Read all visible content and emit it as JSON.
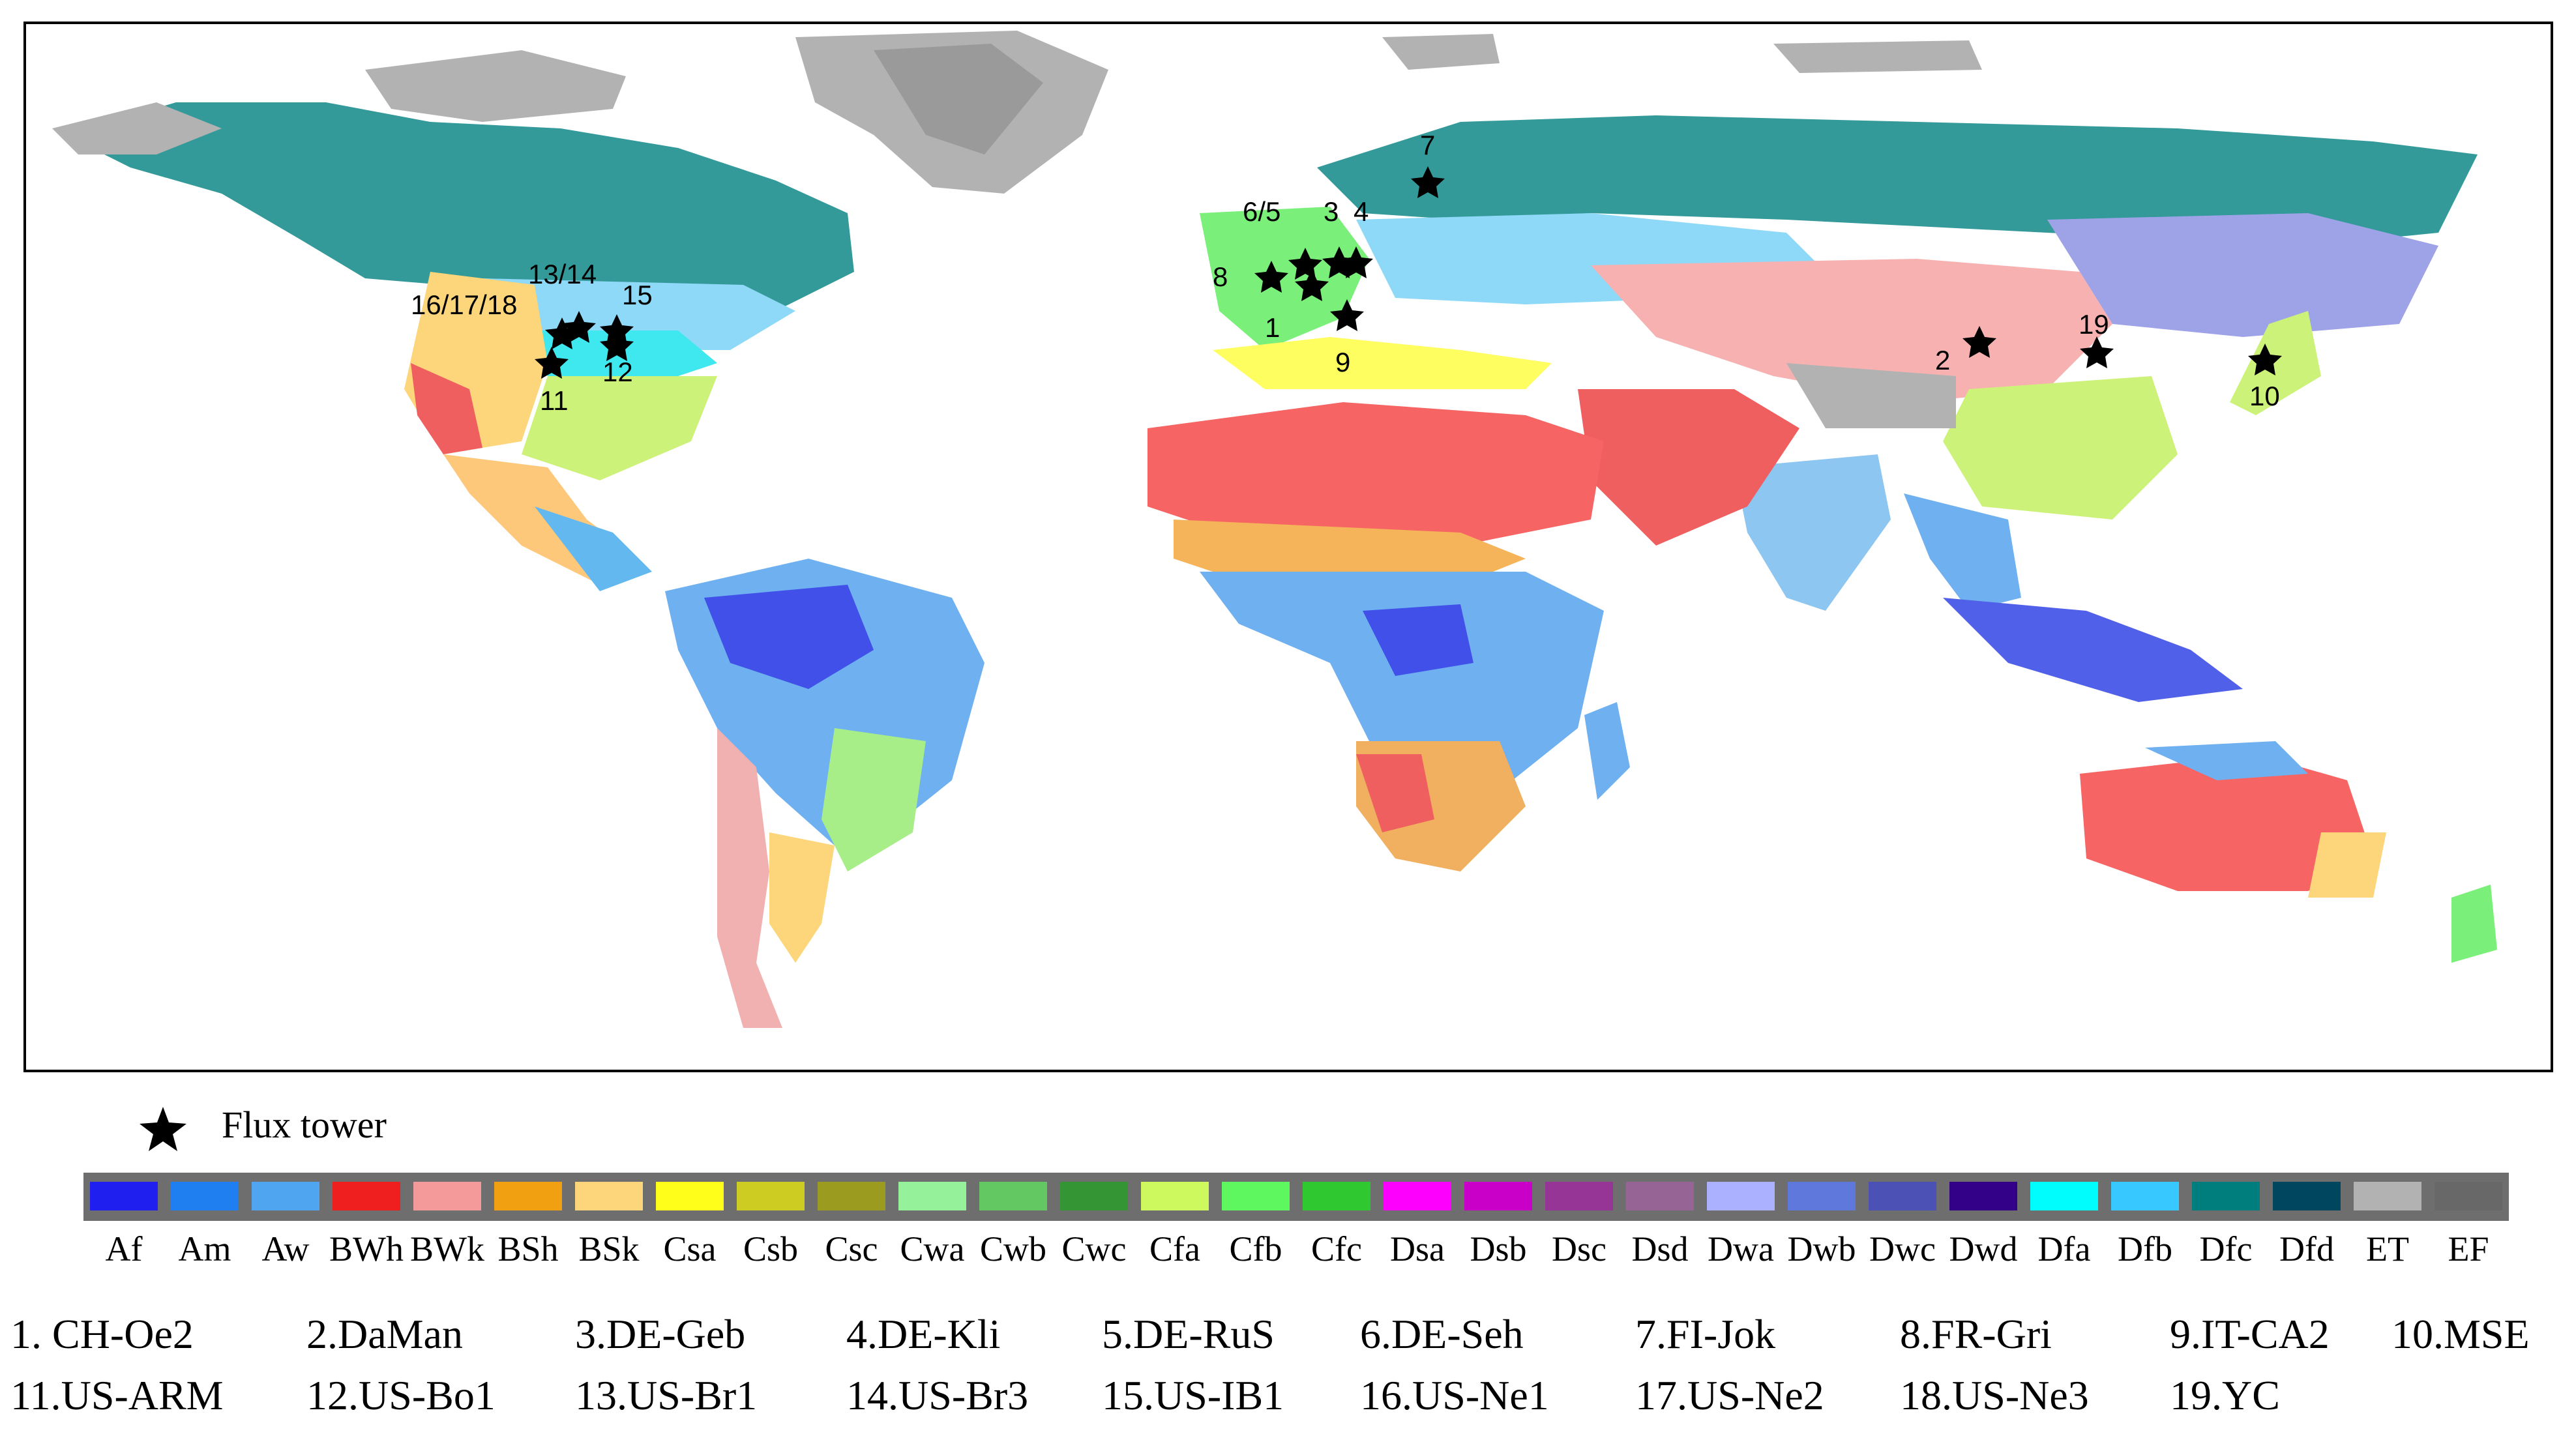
{
  "legend": {
    "flux_tower_label": "Flux tower"
  },
  "climate_classes": [
    {
      "code": "Af",
      "color": "#1f1ff0"
    },
    {
      "code": "Am",
      "color": "#1f7ff0"
    },
    {
      "code": "Aw",
      "color": "#4fa5f0"
    },
    {
      "code": "BWh",
      "color": "#ef1f1f"
    },
    {
      "code": "BWk",
      "color": "#f59a9a"
    },
    {
      "code": "BSh",
      "color": "#f0a011"
    },
    {
      "code": "BSk",
      "color": "#fdd57a"
    },
    {
      "code": "Csa",
      "color": "#fefe1a"
    },
    {
      "code": "Csb",
      "color": "#cccc22"
    },
    {
      "code": "Csc",
      "color": "#9b9b1f"
    },
    {
      "code": "Cwa",
      "color": "#95f29a"
    },
    {
      "code": "Cwb",
      "color": "#63c861"
    },
    {
      "code": "Cwc",
      "color": "#339533"
    },
    {
      "code": "Cfa",
      "color": "#cdf95f"
    },
    {
      "code": "Cfb",
      "color": "#5ff75f"
    },
    {
      "code": "Cfc",
      "color": "#30c830"
    },
    {
      "code": "Dsa",
      "color": "#fd00fd"
    },
    {
      "code": "Dsb",
      "color": "#c800c8"
    },
    {
      "code": "Dsc",
      "color": "#963596"
    },
    {
      "code": "Dsd",
      "color": "#966596"
    },
    {
      "code": "Dwa",
      "color": "#abb1ff"
    },
    {
      "code": "Dwb",
      "color": "#5f78dc"
    },
    {
      "code": "Dwc",
      "color": "#4c51b5"
    },
    {
      "code": "Dwd",
      "color": "#330088"
    },
    {
      "code": "Dfa",
      "color": "#00fdfd"
    },
    {
      "code": "Dfb",
      "color": "#37c8ff"
    },
    {
      "code": "Dfc",
      "color": "#007d7d"
    },
    {
      "code": "Dfd",
      "color": "#00465f"
    },
    {
      "code": "ET",
      "color": "#b2b2b2"
    },
    {
      "code": "EF",
      "color": "#686868"
    }
  ],
  "sites": [
    {
      "label": "1. CH-Oe2"
    },
    {
      "label": "2.DaMan"
    },
    {
      "label": "3.DE-Geb"
    },
    {
      "label": "4.DE-Kli"
    },
    {
      "label": "5.DE-RuS"
    },
    {
      "label": "6.DE-Seh"
    },
    {
      "label": "7.FI-Jok"
    },
    {
      "label": "8.FR-Gri"
    },
    {
      "label": "9.IT-CA2"
    },
    {
      "label": "10.MSE"
    },
    {
      "label": "11.US-ARM"
    },
    {
      "label": "12.US-Bo1"
    },
    {
      "label": "13.US-Br1"
    },
    {
      "label": "14.US-Br3"
    },
    {
      "label": "15.US-IB1"
    },
    {
      "label": "16.US-Ne1"
    },
    {
      "label": "17.US-Ne2"
    },
    {
      "label": "18.US-Ne3"
    },
    {
      "label": "19.YC"
    }
  ],
  "map_labels": [
    "16/17/18",
    "13/14",
    "15",
    "11",
    "12",
    "6/5",
    "3",
    "4",
    "8",
    "1",
    "9",
    "7",
    "2",
    "19",
    "10"
  ]
}
